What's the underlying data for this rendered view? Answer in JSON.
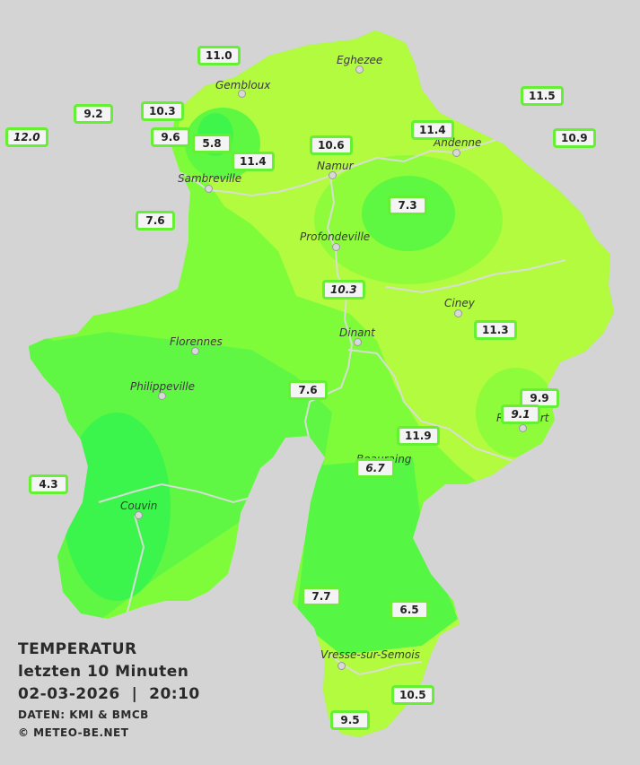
{
  "legend": {
    "title": "TEMPERATUR",
    "period": "letzten 10 Minuten",
    "datetime": "02-03-2026  |  20:10",
    "source": "DATEN: KMI & BMCB",
    "copyright": "© METEO-BE.NET"
  },
  "cities": {
    "eghezee": "Eghezee",
    "gembloux": "Gembloux",
    "andenne": "Andenne",
    "namur": "Namur",
    "sambreville": "Sambreville",
    "profondeville": "Profondeville",
    "ciney": "Ciney",
    "dinant": "Dinant",
    "florennes": "Florennes",
    "philippeville": "Philippeville",
    "rochefort": "Rochefort",
    "beauraing": "Beauraing",
    "couvin": "Couvin",
    "vresse": "Vresse-sur-Semois"
  },
  "stations": {
    "s_gembloux_n": "11.0",
    "s_east_top": "11.5",
    "s_west_far": "12.0",
    "s_west_2": "9.2",
    "s_west_3": "10.3",
    "s_west_4": "9.6",
    "s_sambre": "5.8",
    "s_namur_w": "11.4",
    "s_namur": "10.6",
    "s_andenne": "11.4",
    "s_east_mid": "10.9",
    "s_sambre_s": "7.6",
    "s_center": "7.3",
    "s_meuse": "10.3",
    "s_ciney": "11.3",
    "s_dinant_s": "7.6",
    "s_roch_1": "9.9",
    "s_roch_2": "9.1",
    "s_beau_n": "11.9",
    "s_beau": "6.7",
    "s_west_low": "4.3",
    "s_south_1": "7.7",
    "s_south_2": "6.5",
    "s_south_3": "10.5",
    "s_south_4": "9.5"
  },
  "colors": {
    "background": "#d4d4d4",
    "temp_cold": "#3cf54c",
    "temp_mid": "#7efc3a",
    "temp_warm": "#b2fb3f",
    "badge_border": "#66f033",
    "river": "#dcdcdc"
  }
}
